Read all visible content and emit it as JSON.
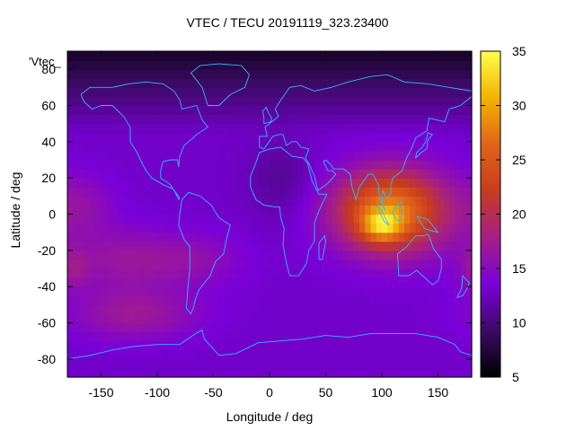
{
  "title": "VTEC / TECU 20191119_323.23400",
  "key_label": "'Vtec_",
  "chart_data": {
    "type": "heatmap",
    "title": "VTEC / TECU 20191119_323.23400",
    "xlabel": "Longitude / deg",
    "ylabel": "Latitude / deg",
    "xlim": [
      -180,
      180
    ],
    "ylim": [
      -90,
      90
    ],
    "x_ticks": [
      -150,
      -100,
      -50,
      0,
      50,
      100,
      150
    ],
    "y_ticks": [
      -80,
      -60,
      -40,
      -20,
      0,
      20,
      40,
      60,
      80
    ],
    "colorbar": {
      "range": [
        5,
        35
      ],
      "ticks": [
        5,
        10,
        15,
        20,
        25,
        30,
        35
      ],
      "palette": [
        "#000000",
        "#3d0a66",
        "#7a00d9",
        "#a51f86",
        "#c83c1e",
        "#e2641a",
        "#f2b300",
        "#ffff4a"
      ]
    },
    "field_model": {
      "base": 13,
      "components": [
        {
          "kind": "gaussian",
          "lon": 108,
          "lat": 2,
          "sigma_lon": 35,
          "sigma_lat": 16,
          "amplitude": 15
        },
        {
          "kind": "gaussian",
          "lon": 100,
          "lat": -6,
          "sigma_lon": 12,
          "sigma_lat": 6,
          "amplitude": 9
        },
        {
          "kind": "gaussian",
          "lon": -130,
          "lat": -25,
          "sigma_lon": 35,
          "sigma_lat": 12,
          "amplitude": 3.5
        },
        {
          "kind": "gaussian",
          "lon": -65,
          "lat": -25,
          "sigma_lon": 30,
          "sigma_lat": 10,
          "amplitude": 2.5
        },
        {
          "kind": "gaussian",
          "lon": -120,
          "lat": -55,
          "sigma_lon": 40,
          "sigma_lat": 10,
          "amplitude": 4
        },
        {
          "kind": "gaussian",
          "lon": -175,
          "lat": -30,
          "sigma_lon": 10,
          "sigma_lat": 8,
          "amplitude": 3
        },
        {
          "kind": "gaussian",
          "lon": -165,
          "lat": 5,
          "sigma_lon": 20,
          "sigma_lat": 12,
          "amplitude": 2.5
        },
        {
          "kind": "gaussian",
          "lon": 10,
          "lat": 20,
          "sigma_lon": 20,
          "sigma_lat": 15,
          "amplitude": -2
        },
        {
          "kind": "polar_drop",
          "from_lat": 45,
          "per_deg": 0.14,
          "floor": 6
        }
      ]
    }
  }
}
